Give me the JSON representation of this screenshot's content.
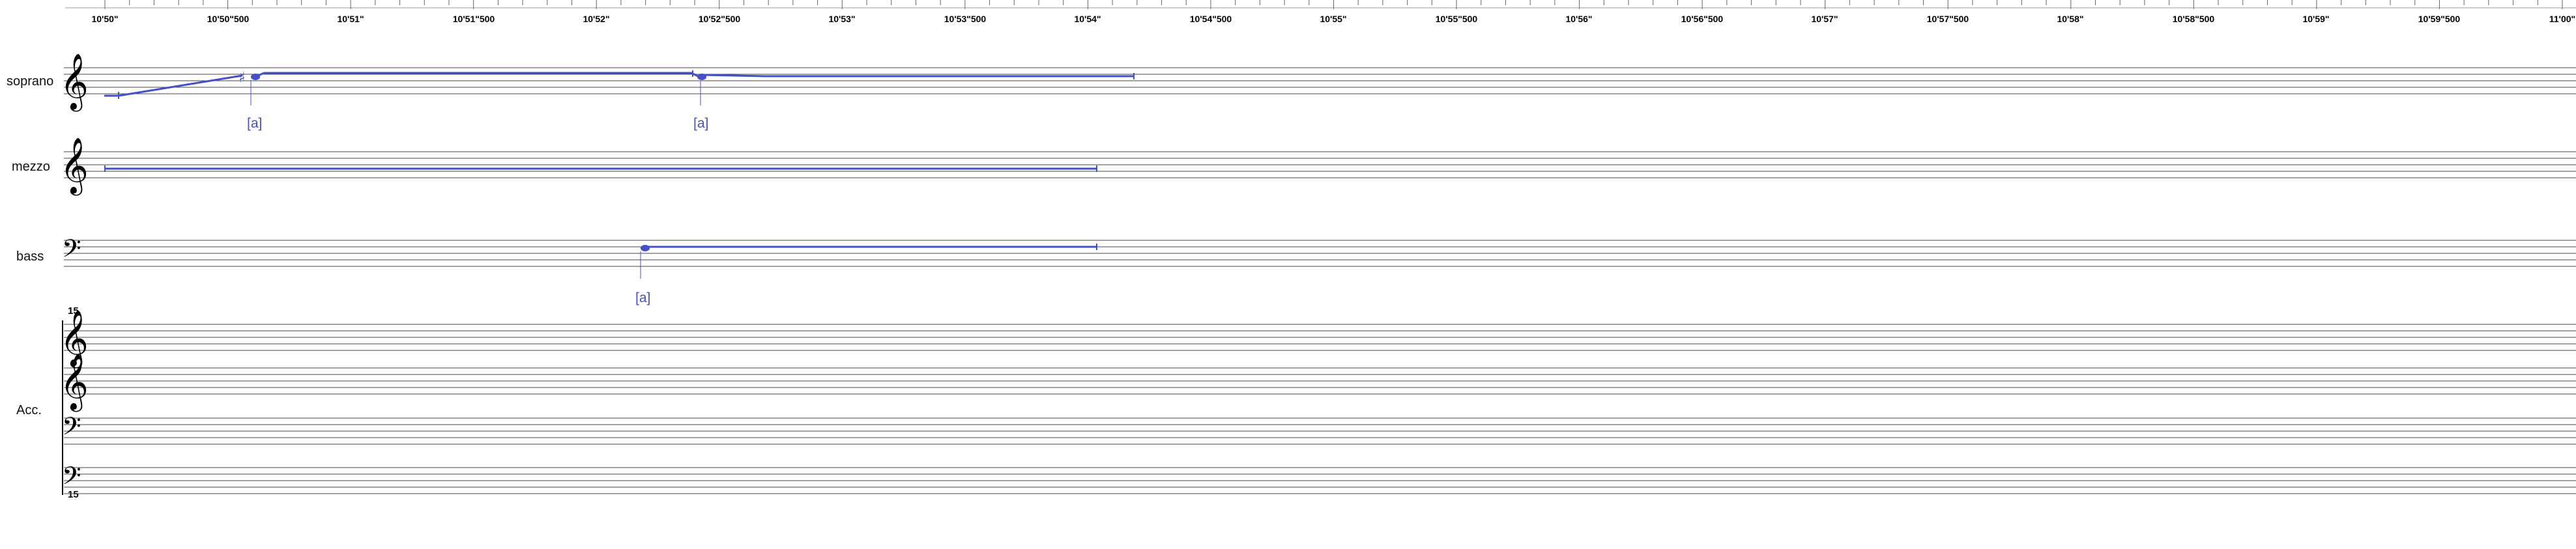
{
  "colors": {
    "note": "#4450c8",
    "staff": "#444444",
    "text": "#000000"
  },
  "ruler": {
    "ticks": [
      "10'50\"",
      "10'50\"500",
      "10'51\"",
      "10'51\"500",
      "10'52\"",
      "10'52\"500",
      "10'53\"",
      "10'53\"500",
      "10'54\"",
      "10'54\"500",
      "10'55\"",
      "10'55\"500",
      "10'56\"",
      "10'56\"500",
      "10'57\"",
      "10'57\"500",
      "10'58\"",
      "10'58\"500",
      "10'59\"",
      "10'59\"500",
      "11'00\""
    ]
  },
  "voices": [
    {
      "name": "soprano",
      "clef": "treble-clef",
      "annotations": [
        "[a]",
        "[a]"
      ]
    },
    {
      "name": "mezzo",
      "clef": "treble-clef",
      "annotations": []
    },
    {
      "name": "bass",
      "clef": "bass-clef",
      "annotations": [
        "[a]"
      ]
    }
  ],
  "accompaniment": {
    "name": "Acc.",
    "octave_marks": [
      "15",
      "15"
    ],
    "clefs": [
      "treble-clef",
      "treble-clef",
      "bass-clef",
      "bass-clef"
    ]
  },
  "icons": [
    "treble-clef-icon",
    "bass-clef-icon",
    "sharp-icon",
    "notehead-icon"
  ]
}
